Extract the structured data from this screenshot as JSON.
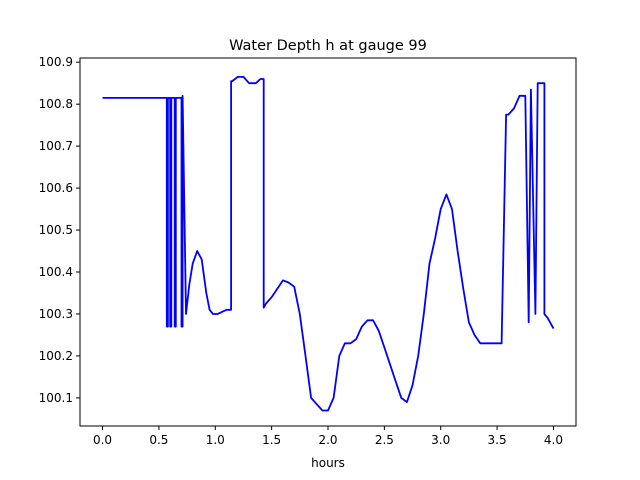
{
  "chart_data": {
    "type": "line",
    "title": "Water Depth h at gauge 99",
    "xlabel": "hours",
    "ylabel": "",
    "xlim": [
      -0.2,
      4.2
    ],
    "ylim": [
      100.033,
      100.91
    ],
    "xticks": [
      0.0,
      0.5,
      1.0,
      1.5,
      2.0,
      2.5,
      3.0,
      3.5,
      4.0
    ],
    "xtick_labels": [
      "0.0",
      "0.5",
      "1.0",
      "1.5",
      "2.0",
      "2.5",
      "3.0",
      "3.5",
      "4.0"
    ],
    "yticks": [
      100.1,
      100.2,
      100.3,
      100.4,
      100.5,
      100.6,
      100.7,
      100.8,
      100.9
    ],
    "ytick_labels": [
      "100.1",
      "100.2",
      "100.3",
      "100.4",
      "100.5",
      "100.6",
      "100.7",
      "100.8",
      "100.9"
    ],
    "grid": false,
    "legend": "none",
    "series": [
      {
        "color": "#0000ff",
        "x": [
          0.0,
          0.55,
          0.57,
          0.57,
          0.58,
          0.58,
          0.6,
          0.6,
          0.61,
          0.61,
          0.64,
          0.64,
          0.65,
          0.65,
          0.68,
          0.7,
          0.7,
          0.71,
          0.71,
          0.74,
          0.77,
          0.8,
          0.84,
          0.88,
          0.92,
          0.95,
          0.98,
          1.02,
          1.06,
          1.1,
          1.14,
          1.14,
          1.15,
          1.2,
          1.25,
          1.3,
          1.36,
          1.4,
          1.43,
          1.43,
          1.45,
          1.5,
          1.55,
          1.6,
          1.65,
          1.7,
          1.75,
          1.8,
          1.85,
          1.9,
          1.95,
          2.0,
          2.05,
          2.1,
          2.15,
          2.2,
          2.25,
          2.3,
          2.35,
          2.4,
          2.45,
          2.5,
          2.55,
          2.6,
          2.65,
          2.7,
          2.75,
          2.8,
          2.85,
          2.9,
          2.95,
          3.0,
          3.05,
          3.1,
          3.15,
          3.2,
          3.25,
          3.3,
          3.35,
          3.4,
          3.45,
          3.5,
          3.54,
          3.58,
          3.58,
          3.6,
          3.65,
          3.7,
          3.75,
          3.78,
          3.78,
          3.8,
          3.8,
          3.84,
          3.84,
          3.86,
          3.86,
          3.9,
          3.92,
          3.92,
          3.95,
          4.0
        ],
        "y": [
          100.815,
          100.815,
          100.815,
          100.27,
          100.27,
          100.815,
          100.815,
          100.27,
          100.27,
          100.815,
          100.815,
          100.27,
          100.27,
          100.815,
          100.815,
          100.815,
          100.27,
          100.27,
          100.82,
          100.3,
          100.37,
          100.42,
          100.45,
          100.43,
          100.35,
          100.31,
          100.3,
          100.3,
          100.305,
          100.31,
          100.31,
          100.855,
          100.855,
          100.865,
          100.865,
          100.85,
          100.85,
          100.86,
          100.86,
          100.315,
          100.325,
          100.34,
          100.36,
          100.38,
          100.375,
          100.365,
          100.3,
          100.2,
          100.1,
          100.085,
          100.07,
          100.07,
          100.1,
          100.2,
          100.23,
          100.23,
          100.24,
          100.27,
          100.285,
          100.285,
          100.26,
          100.22,
          100.18,
          100.14,
          100.1,
          100.09,
          100.13,
          100.2,
          100.3,
          100.42,
          100.48,
          100.55,
          100.585,
          100.55,
          100.45,
          100.36,
          100.28,
          100.25,
          100.23,
          100.23,
          100.23,
          100.23,
          100.23,
          100.775,
          100.775,
          100.775,
          100.79,
          100.82,
          100.82,
          100.28,
          100.28,
          100.835,
          100.835,
          100.3,
          100.3,
          100.85,
          100.85,
          100.85,
          100.85,
          100.3,
          100.29,
          100.265
        ]
      }
    ]
  }
}
